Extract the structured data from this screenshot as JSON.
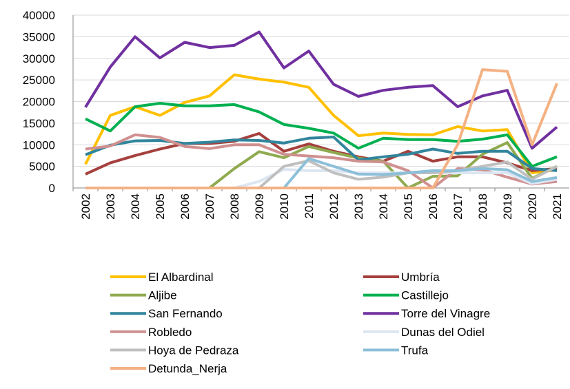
{
  "chart_data": {
    "type": "line",
    "categories": [
      "2002",
      "2003",
      "2004",
      "2005",
      "2006",
      "2007",
      "2008",
      "2009",
      "2010",
      "2011",
      "2012",
      "2013",
      "2014",
      "2015",
      "2016",
      "2017",
      "2018",
      "2019",
      "2020",
      "2021"
    ],
    "ylim": [
      0,
      40000
    ],
    "yticks": [
      0,
      5000,
      10000,
      15000,
      20000,
      25000,
      30000,
      35000,
      40000
    ],
    "grid": true,
    "series": [
      {
        "name": "El Albardinal",
        "color": "#ffc000",
        "values": [
          5500,
          16800,
          18800,
          16800,
          19800,
          21300,
          26200,
          25200,
          24500,
          23300,
          16800,
          12100,
          12700,
          12400,
          12300,
          14200,
          13200,
          13500,
          3500,
          4200
        ]
      },
      {
        "name": "Umbría",
        "color": "#a5403d",
        "values": [
          3200,
          5800,
          7500,
          9000,
          10300,
          10300,
          10800,
          12600,
          8500,
          10200,
          8500,
          7200,
          6200,
          8500,
          6200,
          7200,
          7200,
          5800,
          4000,
          4500
        ]
      },
      {
        "name": "Aljibe",
        "color": "#8faa4f",
        "values": [
          0,
          0,
          0,
          0,
          0,
          0,
          4500,
          8400,
          7000,
          9600,
          8200,
          6900,
          6200,
          0,
          2700,
          2800,
          7800,
          10500,
          2200,
          5000
        ]
      },
      {
        "name": "Castillejo",
        "color": "#00b050",
        "values": [
          16000,
          13200,
          18800,
          19600,
          19000,
          19000,
          19300,
          17600,
          14700,
          13800,
          12700,
          9200,
          11500,
          11200,
          11200,
          10800,
          11300,
          12300,
          5000,
          7200
        ]
      },
      {
        "name": "San Fernando",
        "color": "#31859c",
        "values": [
          7700,
          9900,
          10900,
          11000,
          10300,
          10600,
          11100,
          11000,
          10400,
          11500,
          11800,
          6500,
          7200,
          7800,
          9000,
          8000,
          8500,
          8500,
          4500,
          4000
        ]
      },
      {
        "name": "Torre del Vinagre",
        "color": "#7030a0",
        "values": [
          18700,
          28000,
          35000,
          30100,
          33700,
          32500,
          33000,
          36100,
          27800,
          31700,
          24000,
          21200,
          22600,
          23300,
          23700,
          18800,
          21300,
          22600,
          9200,
          14100
        ]
      },
      {
        "name": "Robledo",
        "color": "#d09090",
        "values": [
          9000,
          9700,
          12300,
          11700,
          9600,
          9100,
          10000,
          10000,
          7800,
          7400,
          7000,
          6200,
          6000,
          4000,
          0,
          4500,
          4200,
          2500,
          900,
          1500
        ]
      },
      {
        "name": "Dunas del Odiel",
        "color": "#dce6f2",
        "values": [
          0,
          0,
          0,
          0,
          0,
          0,
          0,
          1500,
          4300,
          4000,
          4000,
          3500,
          3500,
          3500,
          3500,
          3500,
          3500,
          3500,
          1000,
          2000
        ]
      },
      {
        "name": "Hoya de Pedraza",
        "color": "#bfbfbf",
        "values": [
          0,
          0,
          0,
          0,
          0,
          0,
          0,
          0,
          5000,
          6300,
          3500,
          2000,
          2500,
          3500,
          3500,
          4000,
          5000,
          6000,
          2000,
          5000
        ]
      },
      {
        "name": "Trufa",
        "color": "#8cbfd8",
        "values": [
          0,
          0,
          0,
          0,
          0,
          0,
          0,
          0,
          0,
          6800,
          5000,
          3200,
          3100,
          3500,
          4000,
          4000,
          4500,
          4200,
          1500,
          2400
        ]
      },
      {
        "name": "Detunda_Nerja",
        "color": "#f4b183",
        "values": [
          0,
          0,
          0,
          0,
          0,
          0,
          0,
          0,
          0,
          0,
          0,
          0,
          0,
          0,
          0,
          10000,
          27400,
          27000,
          10000,
          24200
        ]
      }
    ]
  }
}
